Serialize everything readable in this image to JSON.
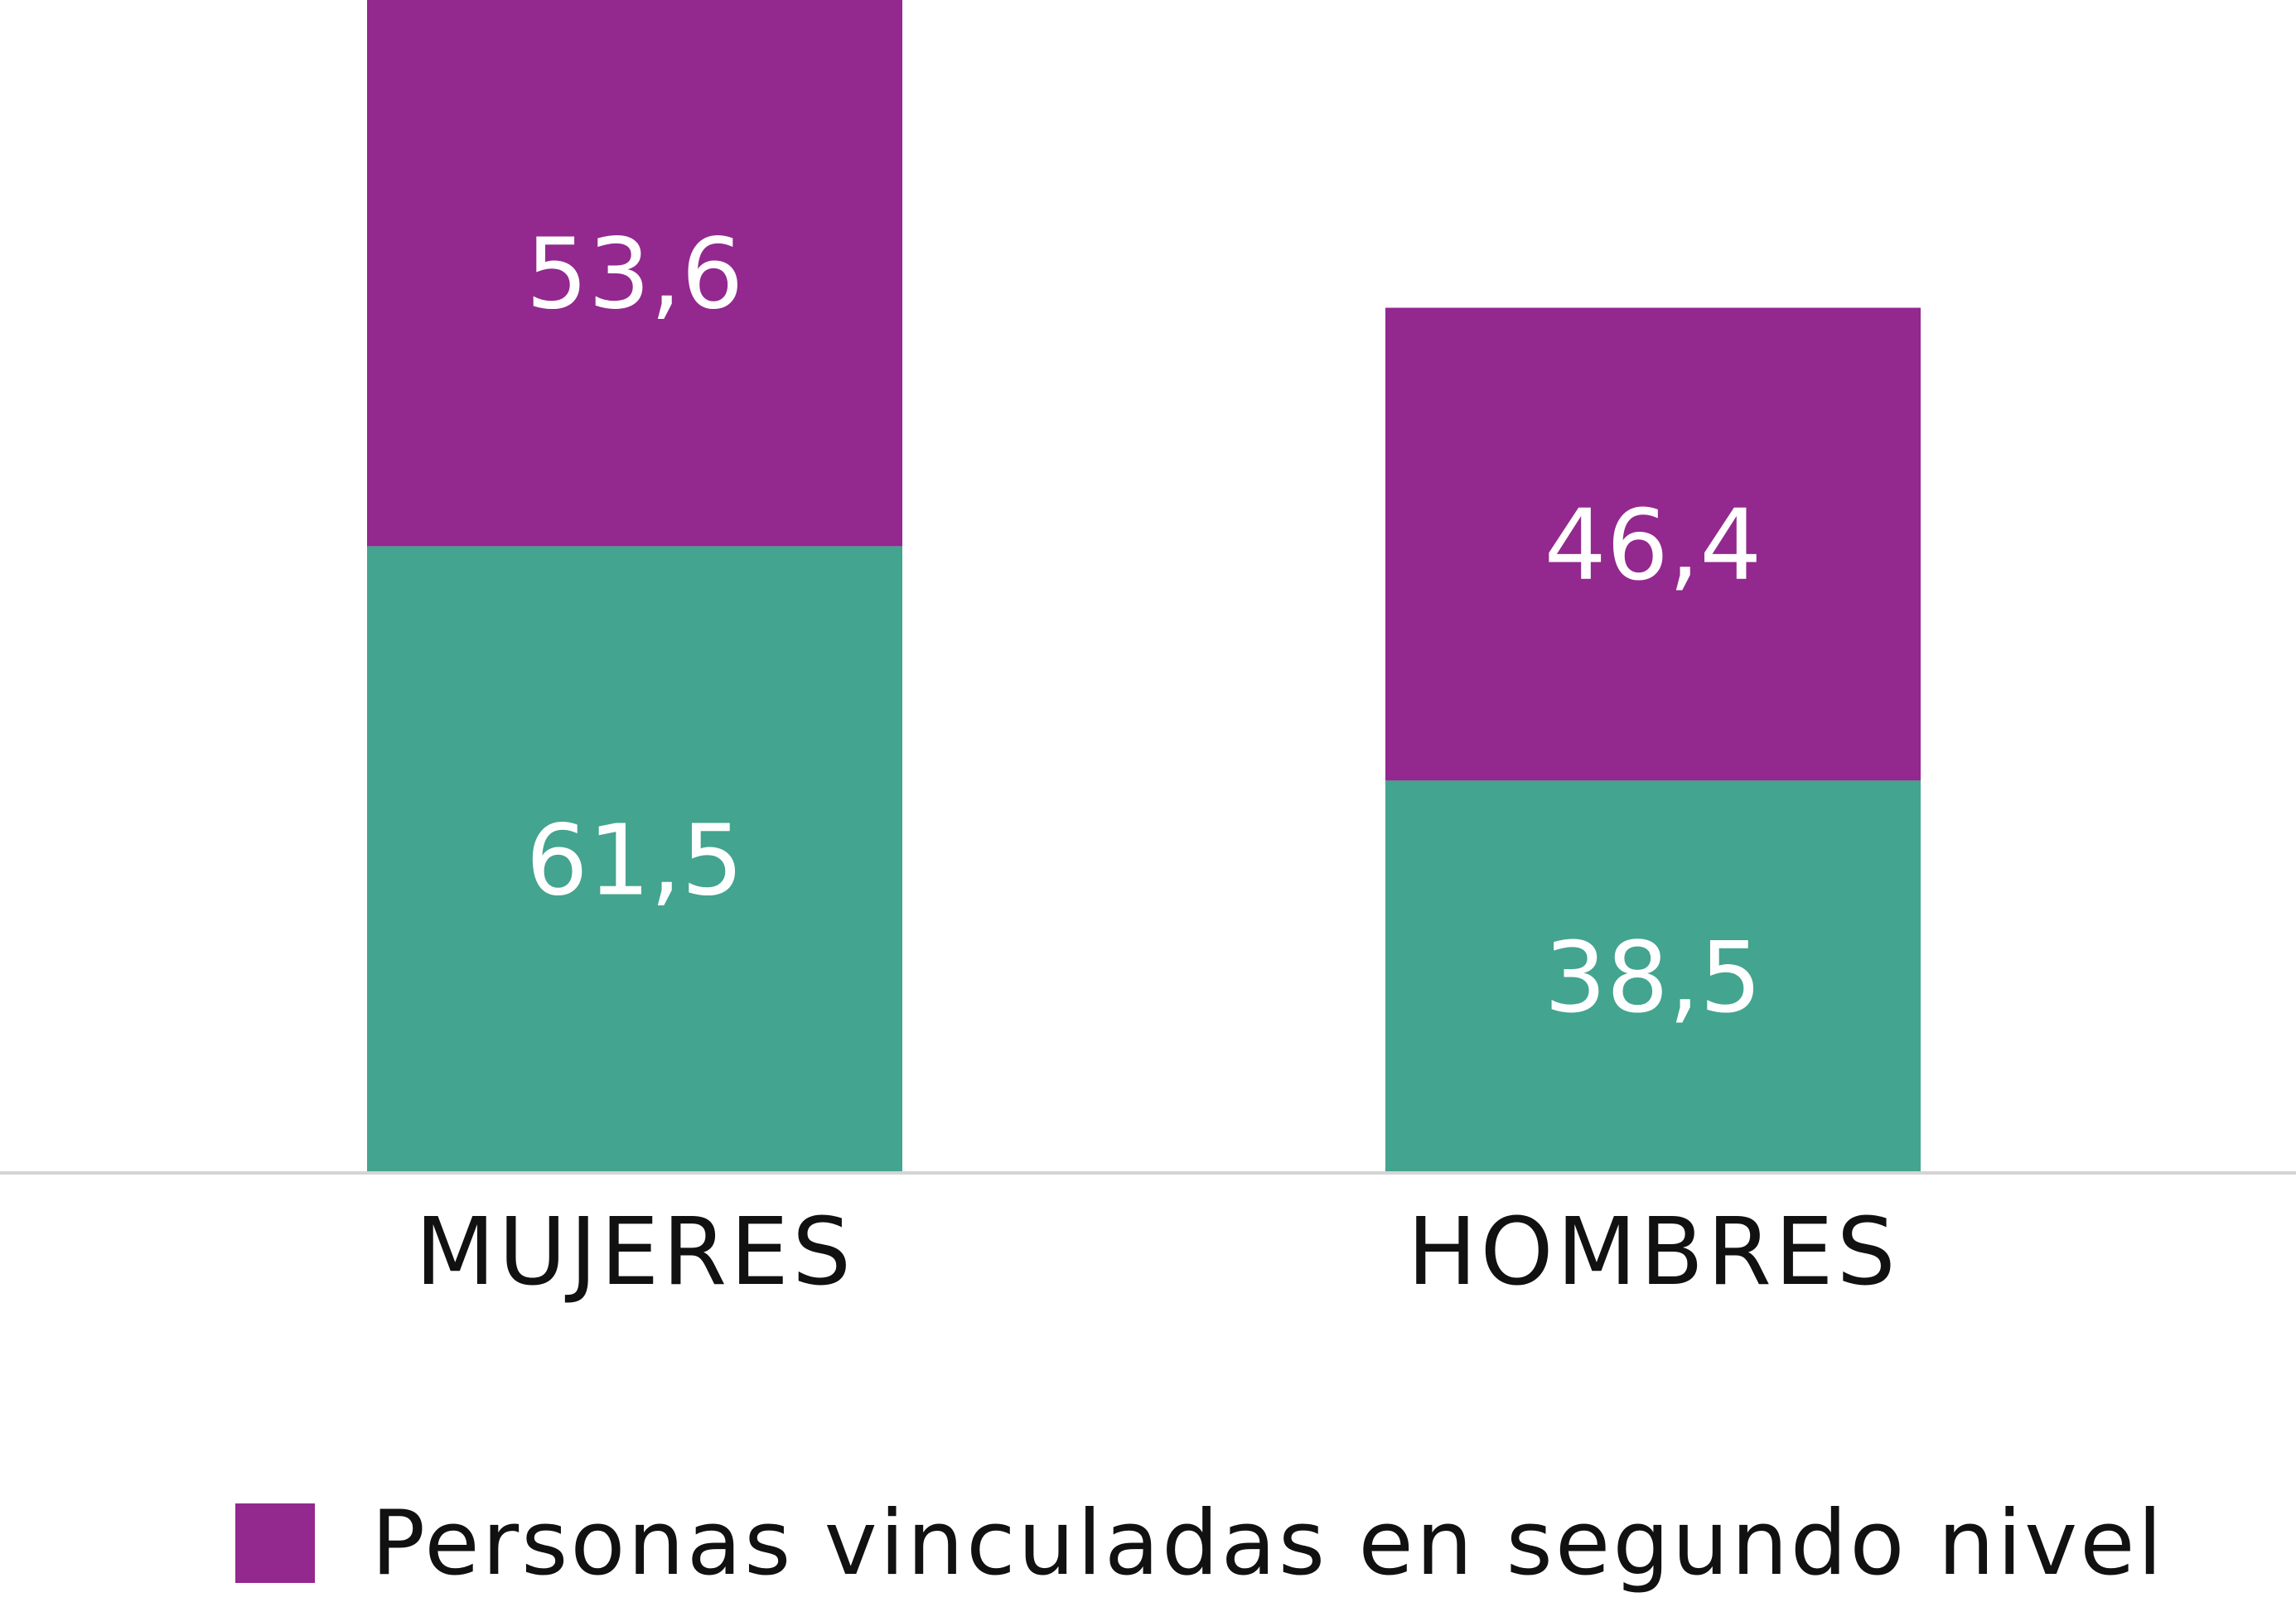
{
  "chart_data": {
    "type": "bar",
    "stacked": true,
    "categories": [
      "MUJERES",
      "HOMBRES"
    ],
    "series": [
      {
        "values": [
          61.5,
          38.5
        ],
        "labels": [
          "61,5",
          "38,5"
        ],
        "color": "#43a48f"
      },
      {
        "name": "Personas vinculadas en segundo nivel",
        "values": [
          53.6,
          46.4
        ],
        "labels": [
          "53,6",
          "46,4"
        ],
        "color": "#93288f"
      }
    ],
    "ylim": [
      0,
      115.1
    ],
    "grid": false,
    "legend_position": "bottom"
  }
}
